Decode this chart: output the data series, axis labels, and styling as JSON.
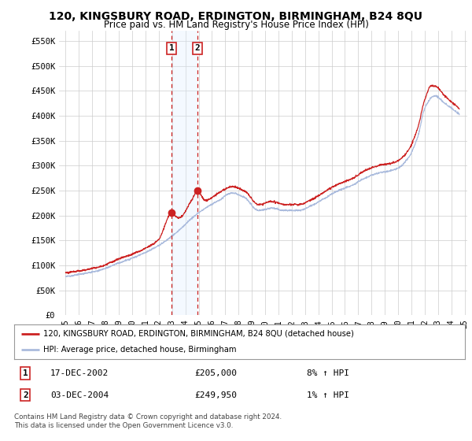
{
  "title": "120, KINGSBURY ROAD, ERDINGTON, BIRMINGHAM, B24 8QU",
  "subtitle": "Price paid vs. HM Land Registry's House Price Index (HPI)",
  "title_fontsize": 10,
  "subtitle_fontsize": 8.5,
  "background_color": "#ffffff",
  "plot_background": "#ffffff",
  "grid_color": "#cccccc",
  "ylim": [
    0,
    570000
  ],
  "yticks": [
    0,
    50000,
    100000,
    150000,
    200000,
    250000,
    300000,
    350000,
    400000,
    450000,
    500000,
    550000
  ],
  "ytick_labels": [
    "£0",
    "£50K",
    "£100K",
    "£150K",
    "£200K",
    "£250K",
    "£300K",
    "£350K",
    "£400K",
    "£450K",
    "£500K",
    "£550K"
  ],
  "xmin_year": 1995,
  "xmax_year": 2025,
  "xticks": [
    1995,
    1996,
    1997,
    1998,
    1999,
    2000,
    2001,
    2002,
    2003,
    2004,
    2005,
    2006,
    2007,
    2008,
    2009,
    2010,
    2011,
    2012,
    2013,
    2014,
    2015,
    2016,
    2017,
    2018,
    2019,
    2020,
    2021,
    2022,
    2023,
    2024,
    2025
  ],
  "hpi_color": "#aabbdd",
  "price_color": "#cc2222",
  "annotation_fill": "#ddeeff",
  "annotation_edge": "#cc2222",
  "legend_line1": "120, KINGSBURY ROAD, ERDINGTON, BIRMINGHAM, B24 8QU (detached house)",
  "legend_line2": "HPI: Average price, detached house, Birmingham",
  "transaction1_label": "1",
  "transaction1_date": "17-DEC-2002",
  "transaction1_price": "£205,000",
  "transaction1_hpi": "8% ↑ HPI",
  "transaction1_year": 2002.96,
  "transaction1_value": 205000,
  "transaction2_label": "2",
  "transaction2_date": "03-DEC-2004",
  "transaction2_price": "£249,950",
  "transaction2_hpi": "1% ↑ HPI",
  "transaction2_year": 2004.92,
  "transaction2_value": 249950,
  "footnote": "Contains HM Land Registry data © Crown copyright and database right 2024.\nThis data is licensed under the Open Government Licence v3.0."
}
